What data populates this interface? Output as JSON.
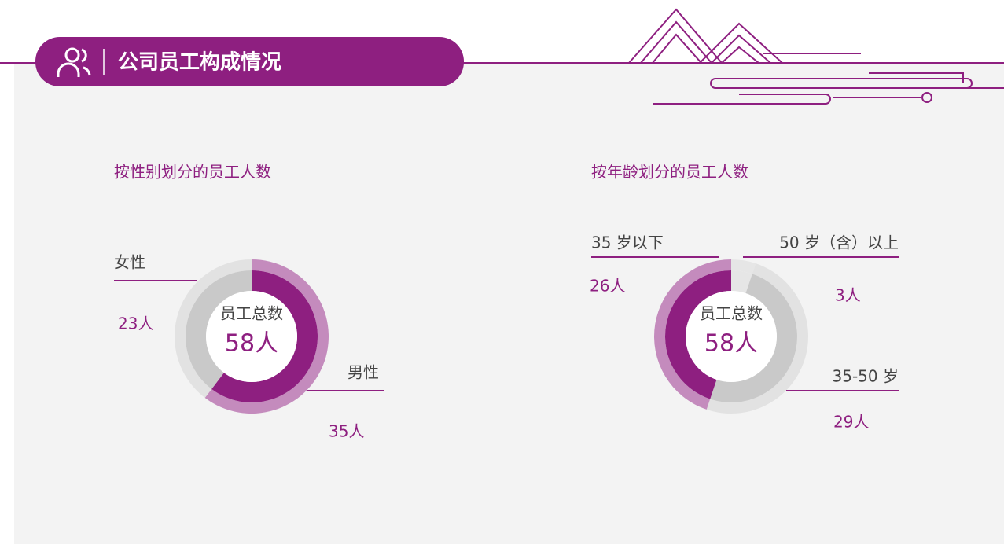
{
  "header": {
    "title": "公司员工构成情况"
  },
  "chart_data": [
    {
      "type": "pie",
      "title": "按性别划分的员工人数",
      "center_title": "员工总数",
      "center_text": "58人",
      "categories": [
        "男性",
        "女性"
      ],
      "values": [
        35,
        23
      ],
      "value_labels": [
        "35人",
        "23人"
      ],
      "colors": [
        "#8e1f80",
        "#c9c9c9"
      ],
      "outer_colors": [
        "#c48bbd",
        "#e2e2e2"
      ]
    },
    {
      "type": "pie",
      "title": "按年龄划分的员工人数",
      "center_title": "员工总数",
      "center_text": "58人",
      "categories": [
        "50 岁（含）以上",
        "35-50 岁",
        "35 岁以下"
      ],
      "values": [
        3,
        29,
        26
      ],
      "value_labels": [
        "3人",
        "29人",
        "26人"
      ],
      "colors": [
        "#e6e6e6",
        "#c9c9c9",
        "#8e1f80"
      ],
      "outer_colors": [
        "#e6e6e6",
        "#e2e2e2",
        "#c48bbd"
      ]
    }
  ]
}
